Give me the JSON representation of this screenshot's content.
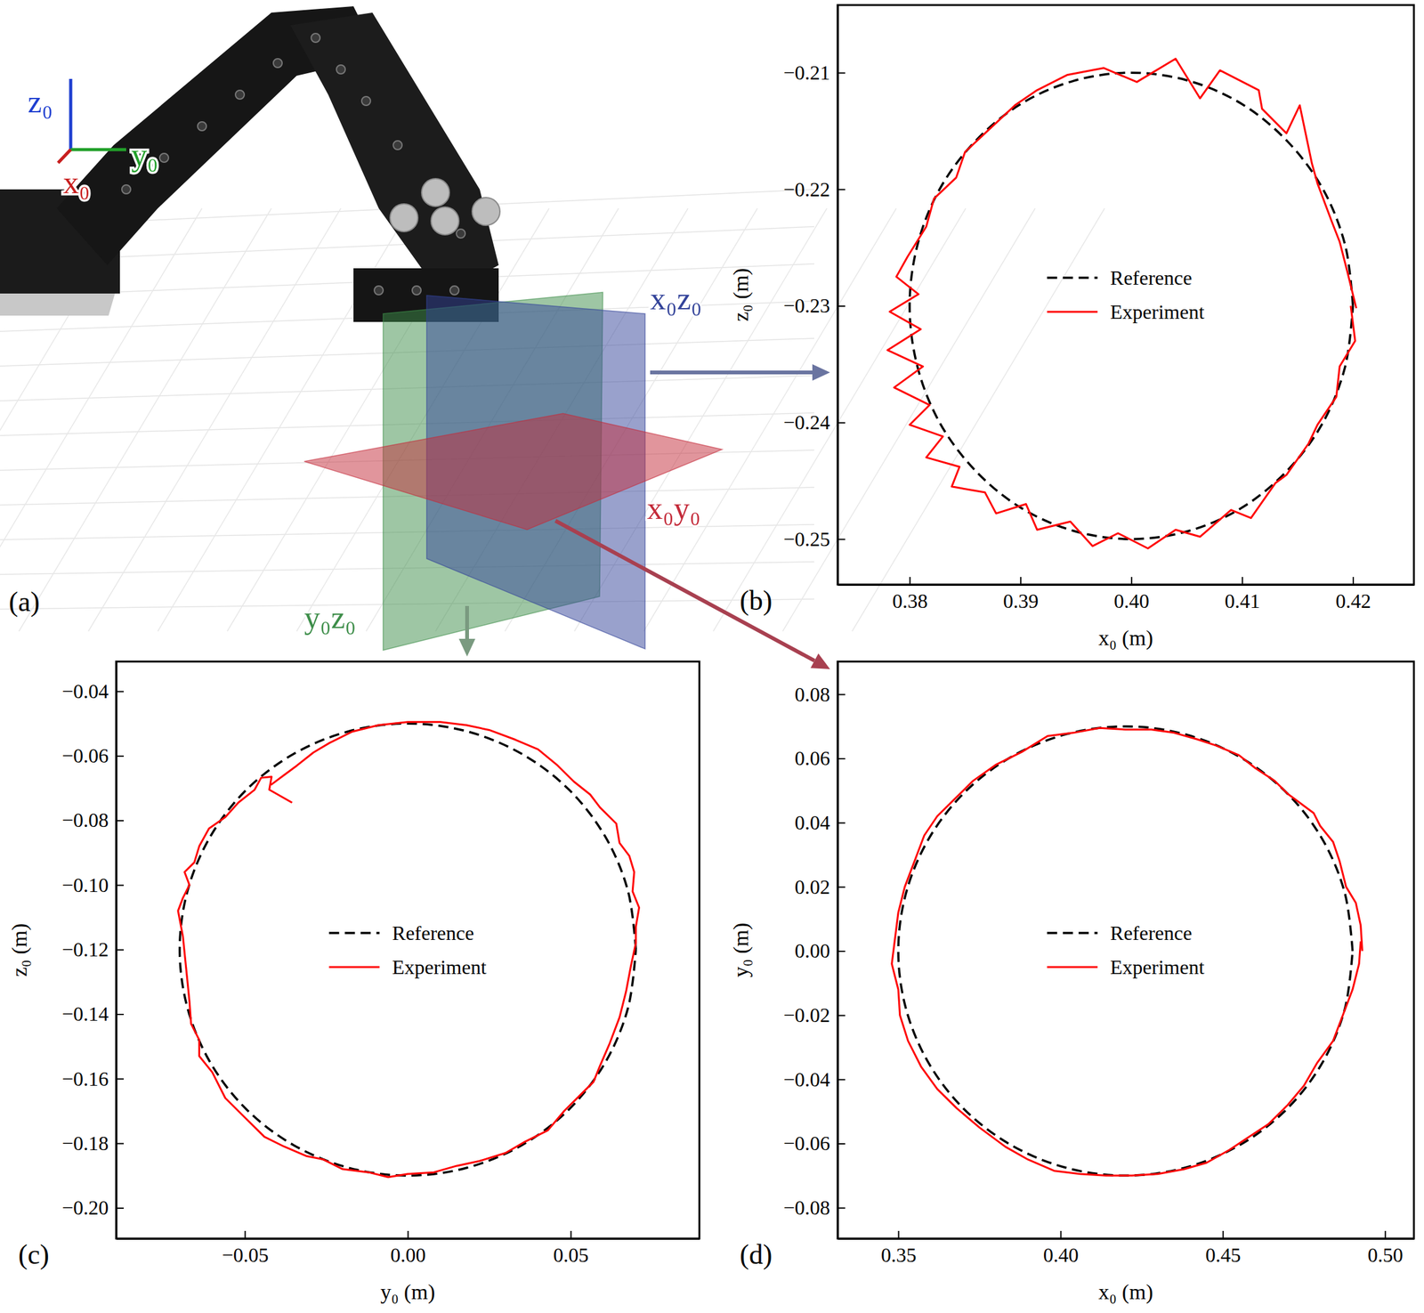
{
  "schematic": {
    "panel_label": "(a)",
    "frame_axes": [
      {
        "label": "z₀",
        "color": "#1f3fd0"
      },
      {
        "label": "y₀",
        "color": "#22a02a"
      },
      {
        "label": "x₀",
        "color": "#c81e1e"
      }
    ],
    "planes": [
      {
        "label": "x₀z₀",
        "color": "#34449a"
      },
      {
        "label": "x₀y₀",
        "color": "#c42b3a"
      },
      {
        "label": "y₀z₀",
        "color": "#3e8e4a"
      }
    ]
  },
  "chart_data": [
    {
      "type": "line",
      "panel_label": "(b)",
      "x_label": "x₀ (m)",
      "y_label": "z₀ (m)",
      "legend": "center",
      "xlim": [
        0.3735,
        0.4255
      ],
      "ylim": [
        -0.2539,
        -0.2042
      ],
      "xticks": [
        0.38,
        0.39,
        {
          "value": 0.4,
          "label": "0.40"
        },
        0.41,
        0.42
      ],
      "yticks": [
        {
          "value": -0.25,
          "label": "−0.25"
        },
        {
          "value": -0.24,
          "label": "−0.24"
        },
        {
          "value": -0.23,
          "label": "−0.23"
        },
        {
          "value": -0.22,
          "label": "−0.22"
        },
        {
          "value": -0.21,
          "label": "−0.21"
        }
      ],
      "series": [
        {
          "name": "Reference",
          "color": "#000000",
          "line_style": "dashed",
          "x": [
            0.42,
            0.4193,
            0.4173,
            0.4141,
            0.41,
            0.4052,
            0.4,
            0.3948,
            0.39,
            0.3859,
            0.3827,
            0.3807,
            0.38,
            0.3807,
            0.3827,
            0.3859,
            0.39,
            0.3948,
            0.4,
            0.4052,
            0.41,
            0.4141,
            0.4173,
            0.4193,
            0.42
          ],
          "values": [
            -0.23,
            -0.2248,
            -0.22,
            -0.2159,
            -0.2127,
            -0.2107,
            -0.21,
            -0.2107,
            -0.2127,
            -0.2159,
            -0.22,
            -0.2248,
            -0.23,
            -0.2352,
            -0.24,
            -0.2441,
            -0.2473,
            -0.2493,
            -0.25,
            -0.2493,
            -0.2473,
            -0.2441,
            -0.24,
            -0.2352,
            -0.23
          ]
        },
        {
          "name": "Experiment",
          "color": "#ff0000",
          "line_style": "solid",
          "x": [
            0.4203,
            0.4195,
            0.4188,
            0.4181,
            0.4168,
            0.4163,
            0.4152,
            0.414,
            0.4118,
            0.4115,
            0.408,
            0.4062,
            0.404,
            0.4005,
            0.3975,
            0.3942,
            0.3915,
            0.3895,
            0.3868,
            0.385,
            0.3842,
            0.3822,
            0.3815,
            0.3798,
            0.3788,
            0.3808,
            0.3782,
            0.381,
            0.378,
            0.3812,
            0.3786,
            0.3818,
            0.38,
            0.383,
            0.3815,
            0.3845,
            0.3838,
            0.3868,
            0.3878,
            0.3905,
            0.3915,
            0.3945,
            0.3965,
            0.3988,
            0.4015,
            0.404,
            0.4062,
            0.409,
            0.4108,
            0.413,
            0.414,
            0.416,
            0.4168,
            0.4185,
            0.4188,
            0.4202,
            0.4198
          ],
          "values": [
            -0.2302,
            -0.2271,
            -0.2245,
            -0.2228,
            -0.2195,
            -0.2178,
            -0.2128,
            -0.2152,
            -0.2131,
            -0.2115,
            -0.2098,
            -0.2122,
            -0.2088,
            -0.2108,
            -0.2096,
            -0.2102,
            -0.2115,
            -0.2128,
            -0.2152,
            -0.2168,
            -0.219,
            -0.2208,
            -0.2232,
            -0.2258,
            -0.2275,
            -0.229,
            -0.2305,
            -0.232,
            -0.2338,
            -0.2352,
            -0.237,
            -0.2385,
            -0.2402,
            -0.2412,
            -0.243,
            -0.2438,
            -0.2455,
            -0.246,
            -0.2478,
            -0.247,
            -0.2492,
            -0.2485,
            -0.2506,
            -0.2495,
            -0.2508,
            -0.2492,
            -0.2498,
            -0.2475,
            -0.2482,
            -0.2452,
            -0.2445,
            -0.2418,
            -0.2402,
            -0.2378,
            -0.2352,
            -0.233,
            -0.23
          ]
        }
      ]
    },
    {
      "type": "line",
      "panel_label": "(c)",
      "x_label": "y₀ (m)",
      "y_label": "z₀ (m)",
      "legend": "center",
      "xlim": [
        -0.0895,
        0.0895
      ],
      "ylim": [
        -0.2095,
        -0.0308
      ],
      "xticks": [
        {
          "value": -0.05,
          "label": "−0.05"
        },
        {
          "value": 0,
          "label": "0.00"
        },
        0.05
      ],
      "yticks": [
        {
          "value": -0.2,
          "label": "−0.20"
        },
        {
          "value": -0.18,
          "label": "−0.18"
        },
        {
          "value": -0.16,
          "label": "−0.16"
        },
        {
          "value": -0.14,
          "label": "−0.14"
        },
        {
          "value": -0.12,
          "label": "−0.12"
        },
        {
          "value": -0.1,
          "label": "−0.10"
        },
        {
          "value": -0.08,
          "label": "−0.08"
        },
        {
          "value": -0.06,
          "label": "−0.06"
        },
        {
          "value": -0.04,
          "label": "−0.04"
        }
      ],
      "series": [
        {
          "name": "Reference",
          "color": "#000000",
          "line_style": "dashed",
          "x": [
            0.07,
            0.0676,
            0.0606,
            0.0495,
            0.035,
            0.0181,
            0,
            -0.0181,
            -0.035,
            -0.0495,
            -0.0606,
            -0.0676,
            -0.07,
            -0.0676,
            -0.0606,
            -0.0495,
            -0.035,
            -0.0181,
            0,
            0.0181,
            0.035,
            0.0495,
            0.0606,
            0.0676,
            0.07
          ],
          "values": [
            -0.12,
            -0.1019,
            -0.085,
            -0.0705,
            -0.0594,
            -0.0524,
            -0.05,
            -0.0524,
            -0.0594,
            -0.0705,
            -0.085,
            -0.1019,
            -0.12,
            -0.1381,
            -0.155,
            -0.1695,
            -0.1806,
            -0.1876,
            -0.19,
            -0.1876,
            -0.1806,
            -0.1695,
            -0.155,
            -0.1381,
            -0.12
          ]
        },
        {
          "name": "Experiment",
          "color": "#ff0000",
          "line_style": "solid",
          "x": [
            -0.0355,
            -0.0425,
            -0.0418,
            -0.045,
            -0.047,
            -0.052,
            -0.056,
            -0.061,
            -0.064,
            -0.0655,
            -0.0685,
            -0.067,
            -0.069,
            -0.0705,
            -0.069,
            -0.068,
            -0.067,
            -0.0665,
            -0.064,
            -0.064,
            -0.06,
            -0.056,
            -0.05,
            -0.044,
            -0.038,
            -0.031,
            -0.026,
            -0.02,
            -0.012,
            -0.006,
            0,
            0.008,
            0.015,
            0.022,
            0.03,
            0.036,
            0.043,
            0.048,
            0.053,
            0.057,
            0.059,
            0.062,
            0.065,
            0.067,
            0.0685,
            0.07,
            0.07,
            0.071,
            0.069,
            0.0695,
            0.068,
            0.065,
            0.064,
            0.059,
            0.056,
            0.051,
            0.046,
            0.04,
            0.033,
            0.025,
            0.018,
            0.01,
            0,
            -0.009,
            -0.017,
            -0.024,
            -0.029,
            -0.034,
            -0.038,
            -0.042
          ],
          "values": [
            -0.0745,
            -0.0705,
            -0.0665,
            -0.0668,
            -0.0705,
            -0.0745,
            -0.079,
            -0.0825,
            -0.088,
            -0.093,
            -0.096,
            -0.1,
            -0.104,
            -0.108,
            -0.116,
            -0.126,
            -0.136,
            -0.143,
            -0.148,
            -0.153,
            -0.158,
            -0.166,
            -0.172,
            -0.178,
            -0.181,
            -0.184,
            -0.185,
            -0.188,
            -0.189,
            -0.1905,
            -0.1895,
            -0.189,
            -0.187,
            -0.1855,
            -0.183,
            -0.1795,
            -0.176,
            -0.17,
            -0.165,
            -0.161,
            -0.156,
            -0.149,
            -0.141,
            -0.133,
            -0.125,
            -0.118,
            -0.113,
            -0.107,
            -0.102,
            -0.096,
            -0.091,
            -0.087,
            -0.081,
            -0.076,
            -0.072,
            -0.068,
            -0.063,
            -0.058,
            -0.055,
            -0.052,
            -0.0505,
            -0.0495,
            -0.0495,
            -0.0505,
            -0.0525,
            -0.056,
            -0.059,
            -0.063,
            -0.066,
            -0.069
          ]
        }
      ]
    },
    {
      "type": "line",
      "panel_label": "(d)",
      "x_label": "x₀ (m)",
      "y_label": "y₀ (m)",
      "legend": "center",
      "xlim": [
        0.3313,
        0.5089
      ],
      "ylim": [
        -0.0896,
        0.0902
      ],
      "xticks": [
        0.35,
        {
          "value": 0.4,
          "label": "0.40"
        },
        0.45,
        {
          "value": 0.5,
          "label": "0.50"
        }
      ],
      "yticks": [
        {
          "value": -0.08,
          "label": "−0.08"
        },
        {
          "value": -0.06,
          "label": "−0.06"
        },
        {
          "value": -0.04,
          "label": "−0.04"
        },
        {
          "value": -0.02,
          "label": "−0.02"
        },
        {
          "value": 0,
          "label": "0.00"
        },
        0.02,
        0.04,
        0.06,
        0.08
      ],
      "series": [
        {
          "name": "Reference",
          "color": "#000000",
          "line_style": "dashed",
          "x": [
            0.49,
            0.4876,
            0.4806,
            0.4695,
            0.455,
            0.4381,
            0.42,
            0.4019,
            0.385,
            0.3705,
            0.3594,
            0.3524,
            0.35,
            0.3524,
            0.3594,
            0.3705,
            0.385,
            0.4019,
            0.42,
            0.4381,
            0.455,
            0.4695,
            0.4806,
            0.4876,
            0.49
          ],
          "values": [
            0,
            0.0181,
            0.035,
            0.0495,
            0.0606,
            0.0676,
            0.07,
            0.0676,
            0.0606,
            0.0495,
            0.035,
            0.0181,
            0,
            -0.0181,
            -0.035,
            -0.0495,
            -0.0606,
            -0.0676,
            -0.07,
            -0.0676,
            -0.0606,
            -0.0495,
            -0.035,
            -0.0181,
            0
          ]
        },
        {
          "name": "Experiment",
          "color": "#ff0000",
          "line_style": "solid",
          "x": [
            0.493,
            0.4925,
            0.491,
            0.488,
            0.486,
            0.484,
            0.48,
            0.478,
            0.474,
            0.47,
            0.466,
            0.46,
            0.455,
            0.448,
            0.442,
            0.435,
            0.428,
            0.42,
            0.412,
            0.404,
            0.396,
            0.388,
            0.38,
            0.373,
            0.367,
            0.362,
            0.358,
            0.355,
            0.352,
            0.35,
            0.349,
            0.348,
            0.35,
            0.3505,
            0.353,
            0.357,
            0.362,
            0.368,
            0.375,
            0.383,
            0.39,
            0.398,
            0.406,
            0.414,
            0.422,
            0.43,
            0.438,
            0.445,
            0.452,
            0.458,
            0.464,
            0.47,
            0.475,
            0.479,
            0.484,
            0.487,
            0.49,
            0.492,
            0.4925
          ],
          "values": [
            0,
            0.008,
            0.015,
            0.02,
            0.028,
            0.034,
            0.039,
            0.043,
            0.046,
            0.049,
            0.053,
            0.057,
            0.061,
            0.064,
            0.066,
            0.068,
            0.069,
            0.069,
            0.0695,
            0.068,
            0.067,
            0.062,
            0.058,
            0.053,
            0.047,
            0.042,
            0.036,
            0.028,
            0.02,
            0.012,
            0.004,
            -0.004,
            -0.012,
            -0.02,
            -0.028,
            -0.036,
            -0.043,
            -0.049,
            -0.055,
            -0.061,
            -0.065,
            -0.0685,
            -0.0695,
            -0.07,
            -0.07,
            -0.0695,
            -0.068,
            -0.066,
            -0.062,
            -0.058,
            -0.054,
            -0.048,
            -0.042,
            -0.035,
            -0.028,
            -0.02,
            -0.012,
            -0.004,
            0.003
          ]
        }
      ]
    }
  ]
}
